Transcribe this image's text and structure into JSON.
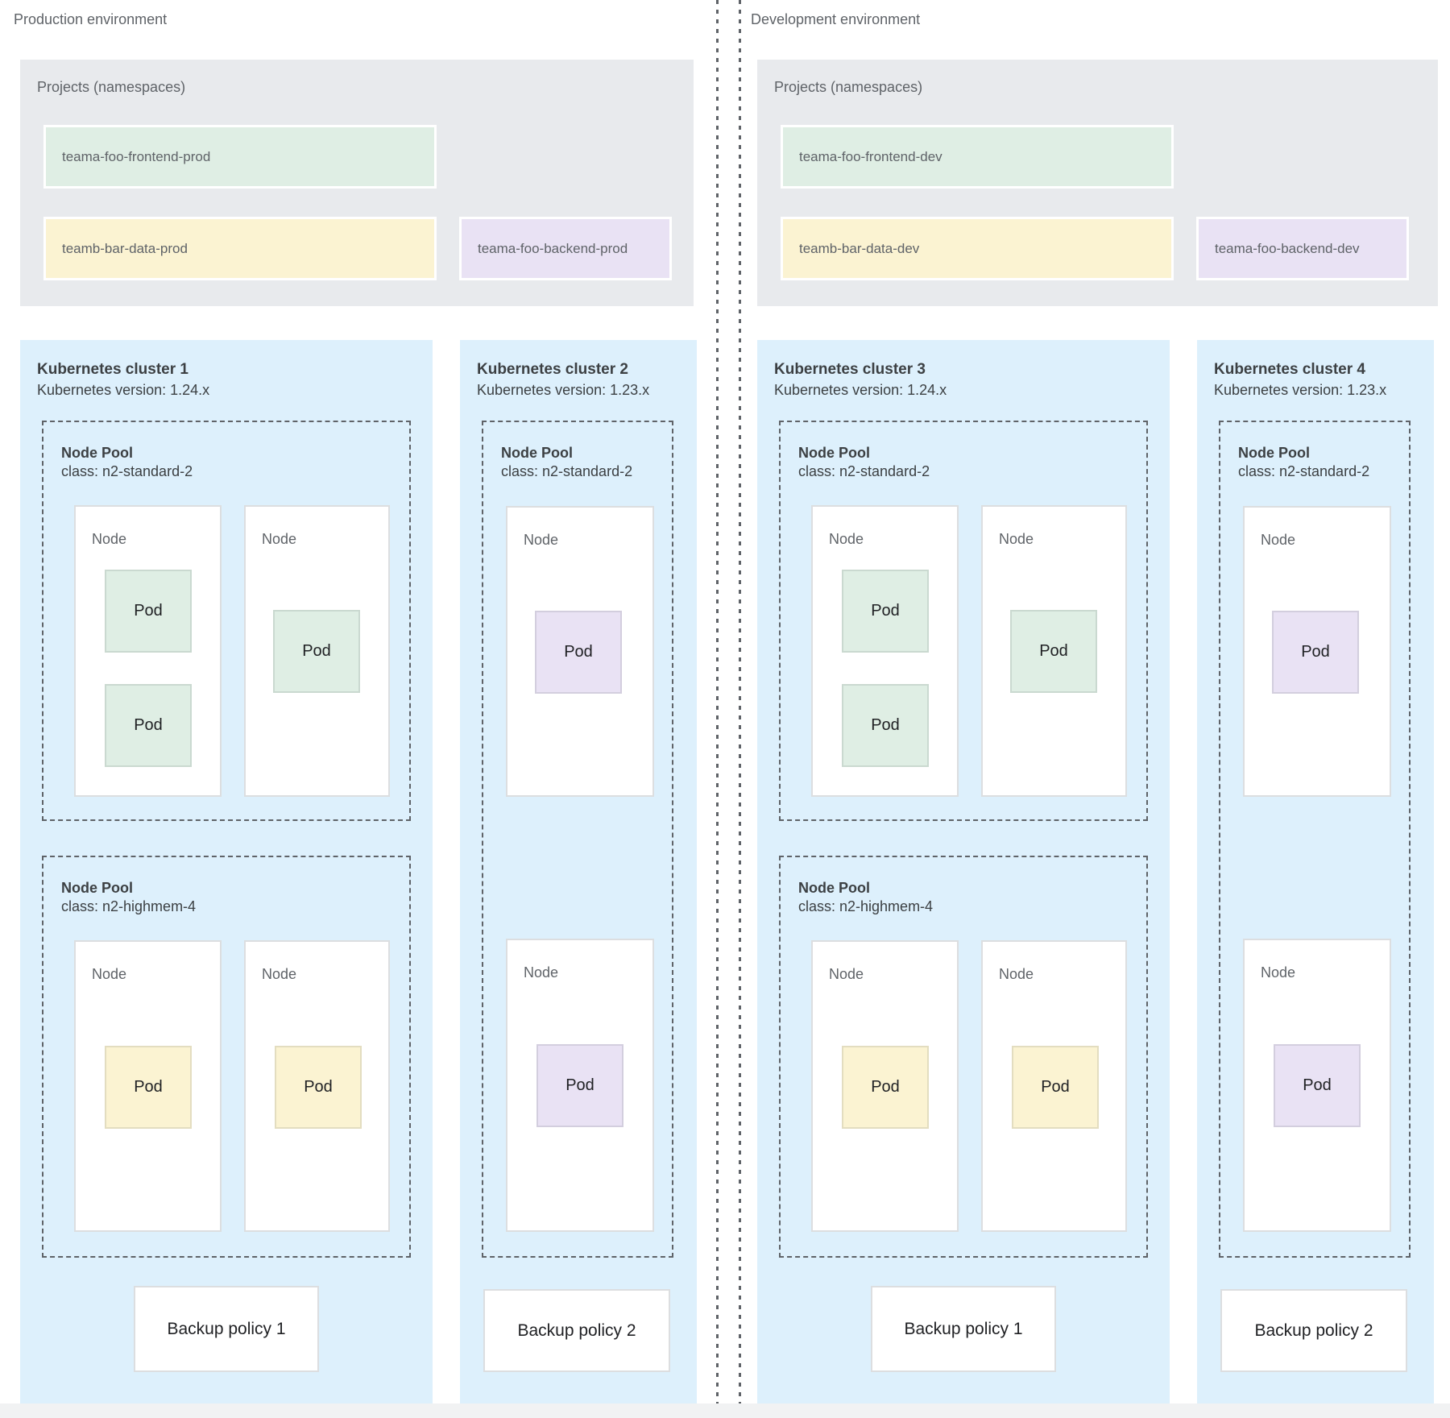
{
  "colors": {
    "cluster_background": "#ddf0fc",
    "projects_background": "#e8eaed",
    "namespace_green": "#dfeee4",
    "namespace_yellow": "#fbf3d2",
    "namespace_purple": "#e9e2f4",
    "divider_gray": "#5f6368"
  },
  "environments": [
    {
      "label": "Production environment",
      "projects": {
        "title": "Projects (namespaces)",
        "namespaces": [
          {
            "name": "teama-foo-frontend-prod",
            "color": "green"
          },
          {
            "name": "teamb-bar-data-prod",
            "color": "yellow"
          },
          {
            "name": "teama-foo-backend-prod",
            "color": "purple"
          }
        ]
      },
      "clusters": [
        {
          "title": "Kubernetes cluster 1",
          "version": "Kubernetes version: 1.24.x",
          "backup_policy": "Backup policy 1",
          "node_pools": [
            {
              "title": "Node Pool",
              "class": "class: n2-standard-2",
              "nodes": [
                {
                  "label": "Node",
                  "pods": [
                    {
                      "label": "Pod",
                      "color": "green"
                    },
                    {
                      "label": "Pod",
                      "color": "green"
                    }
                  ]
                },
                {
                  "label": "Node",
                  "pods": [
                    {
                      "label": "Pod",
                      "color": "green"
                    }
                  ]
                }
              ]
            },
            {
              "title": "Node Pool",
              "class": "class: n2-highmem-4",
              "nodes": [
                {
                  "label": "Node",
                  "pods": [
                    {
                      "label": "Pod",
                      "color": "yellow"
                    }
                  ]
                },
                {
                  "label": "Node",
                  "pods": [
                    {
                      "label": "Pod",
                      "color": "yellow"
                    }
                  ]
                }
              ]
            }
          ]
        },
        {
          "title": "Kubernetes cluster 2",
          "version": "Kubernetes version: 1.23.x",
          "backup_policy": "Backup policy 2",
          "node_pools": [
            {
              "title": "Node Pool",
              "class": "class: n2-standard-2",
              "nodes": [
                {
                  "label": "Node",
                  "pods": [
                    {
                      "label": "Pod",
                      "color": "purple"
                    }
                  ]
                },
                {
                  "label": "Node",
                  "pods": [
                    {
                      "label": "Pod",
                      "color": "purple"
                    }
                  ]
                }
              ]
            }
          ]
        }
      ]
    },
    {
      "label": "Development environment",
      "projects": {
        "title": "Projects (namespaces)",
        "namespaces": [
          {
            "name": "teama-foo-frontend-dev",
            "color": "green"
          },
          {
            "name": "teamb-bar-data-dev",
            "color": "yellow"
          },
          {
            "name": "teama-foo-backend-dev",
            "color": "purple"
          }
        ]
      },
      "clusters": [
        {
          "title": "Kubernetes cluster 3",
          "version": "Kubernetes version: 1.24.x",
          "backup_policy": "Backup policy 1",
          "node_pools": [
            {
              "title": "Node Pool",
              "class": "class: n2-standard-2",
              "nodes": [
                {
                  "label": "Node",
                  "pods": [
                    {
                      "label": "Pod",
                      "color": "green"
                    },
                    {
                      "label": "Pod",
                      "color": "green"
                    }
                  ]
                },
                {
                  "label": "Node",
                  "pods": [
                    {
                      "label": "Pod",
                      "color": "green"
                    }
                  ]
                }
              ]
            },
            {
              "title": "Node Pool",
              "class": "class: n2-highmem-4",
              "nodes": [
                {
                  "label": "Node",
                  "pods": [
                    {
                      "label": "Pod",
                      "color": "yellow"
                    }
                  ]
                },
                {
                  "label": "Node",
                  "pods": [
                    {
                      "label": "Pod",
                      "color": "yellow"
                    }
                  ]
                }
              ]
            }
          ]
        },
        {
          "title": "Kubernetes cluster 4",
          "version": "Kubernetes version: 1.23.x",
          "backup_policy": "Backup policy 2",
          "node_pools": [
            {
              "title": "Node Pool",
              "class": "class: n2-standard-2",
              "nodes": [
                {
                  "label": "Node",
                  "pods": [
                    {
                      "label": "Pod",
                      "color": "purple"
                    }
                  ]
                },
                {
                  "label": "Node",
                  "pods": [
                    {
                      "label": "Pod",
                      "color": "purple"
                    }
                  ]
                }
              ]
            }
          ]
        }
      ]
    }
  ]
}
